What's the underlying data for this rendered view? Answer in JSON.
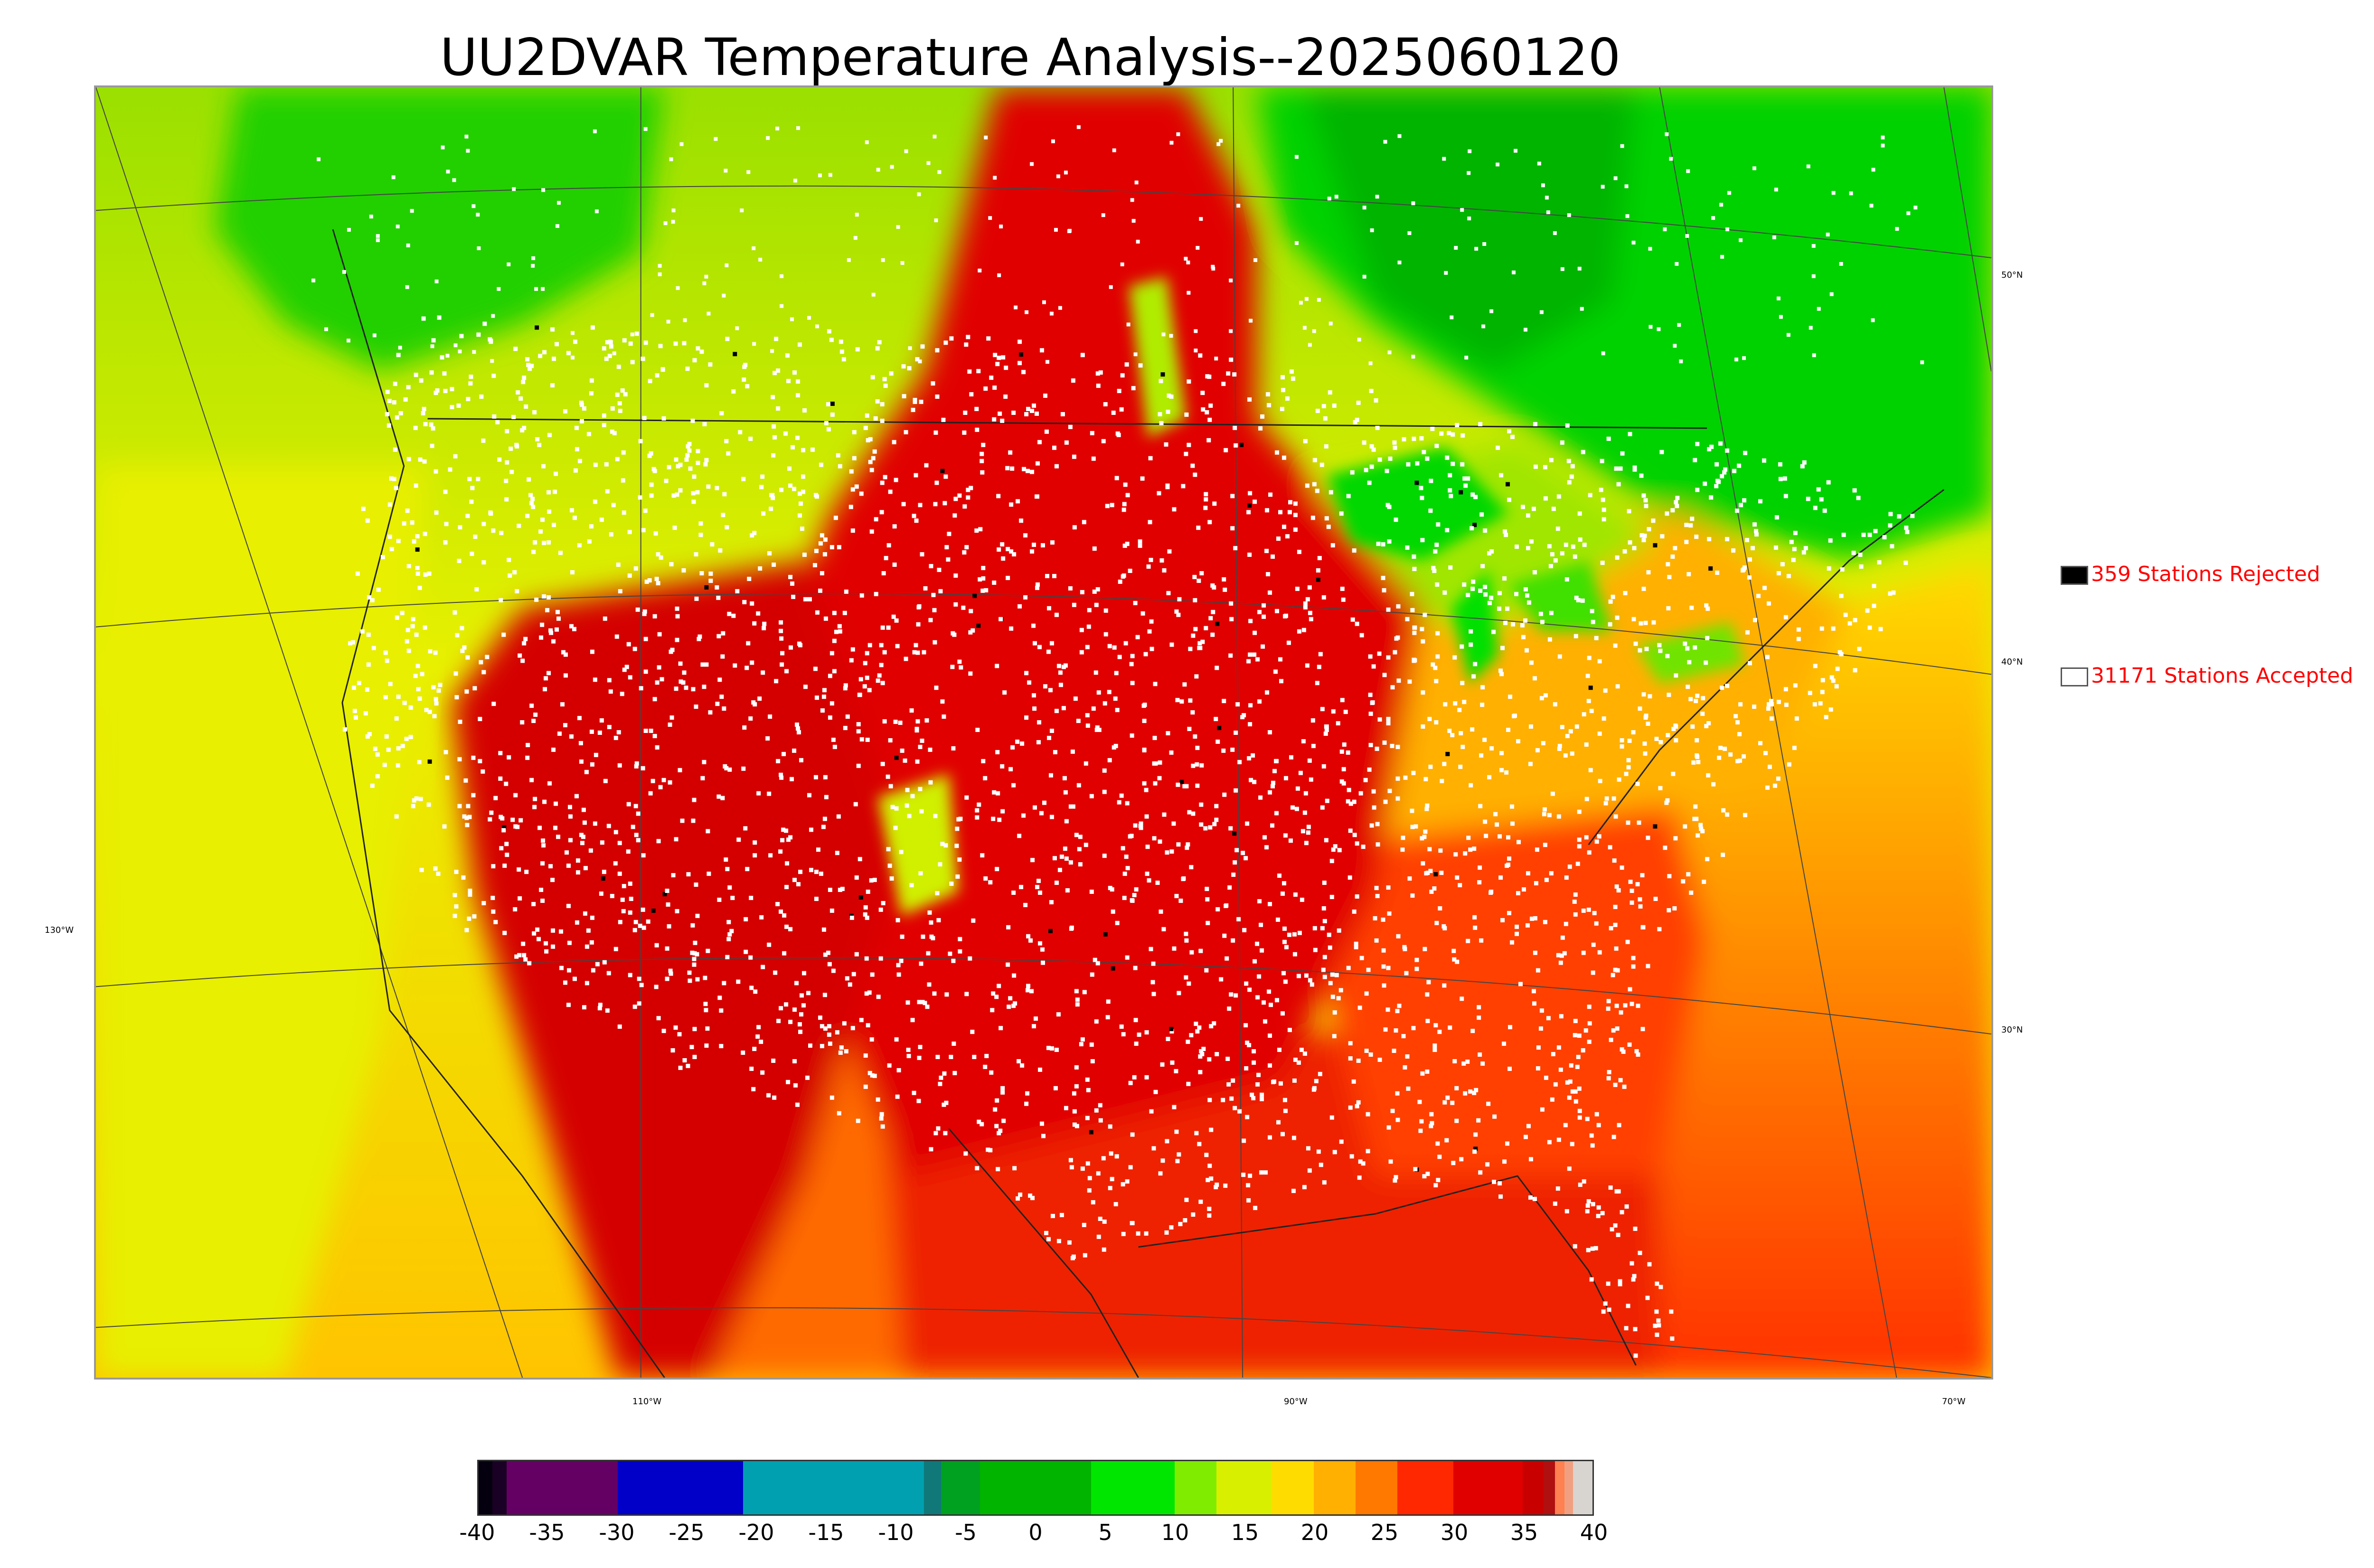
{
  "title": "UU2DVAR Temperature Analysis--2025060120",
  "map": {
    "longitude_labels": [
      "130°W",
      "110°W",
      "90°W",
      "70°W"
    ],
    "latitude_labels": [
      "50°N",
      "40°N",
      "30°N"
    ],
    "colors": {
      "cold": "#00c800",
      "cool": "#7de000",
      "mild": "#e8f000",
      "warm": "#ffc400",
      "hot": "#ff6a00",
      "veryhot": "#ee1c00",
      "extreme": "#c80000",
      "station_accepted": "#ffffff",
      "station_rejected": "#000000"
    }
  },
  "legend": {
    "rejected": {
      "label": "359 Stations Rejected",
      "count": 359,
      "swatch_color": "#000000"
    },
    "accepted": {
      "label": "31171 Stations Accepted",
      "count": 31171,
      "swatch_color": "#ffffff"
    }
  },
  "colorbar": {
    "ticks": [
      "-40",
      "-35",
      "-30",
      "-25",
      "-20",
      "-15",
      "-10",
      "-5",
      "0",
      "5",
      "10",
      "15",
      "20",
      "25",
      "30",
      "35",
      "40"
    ],
    "range": [
      -40,
      40
    ],
    "segments": [
      {
        "from": -40,
        "to": -39,
        "color": "#050010"
      },
      {
        "from": -39,
        "to": -38,
        "color": "#1a0025"
      },
      {
        "from": -38,
        "to": -30,
        "color": "#640064"
      },
      {
        "from": -30,
        "to": -21,
        "color": "#0000c8"
      },
      {
        "from": -21,
        "to": -8,
        "color": "#00a0b0"
      },
      {
        "from": -8,
        "to": -6.8,
        "color": "#107878"
      },
      {
        "from": -6.8,
        "to": -4,
        "color": "#00a020"
      },
      {
        "from": -4,
        "to": 4,
        "color": "#00b400"
      },
      {
        "from": 4,
        "to": 10,
        "color": "#00e600"
      },
      {
        "from": 10,
        "to": 13,
        "color": "#80ec00"
      },
      {
        "from": 13,
        "to": 17,
        "color": "#d8f000"
      },
      {
        "from": 17,
        "to": 20,
        "color": "#ffdc00"
      },
      {
        "from": 20,
        "to": 23,
        "color": "#ffb000"
      },
      {
        "from": 23,
        "to": 26,
        "color": "#ff7800"
      },
      {
        "from": 26,
        "to": 30,
        "color": "#ff2800"
      },
      {
        "from": 30,
        "to": 35,
        "color": "#e00000"
      },
      {
        "from": 35,
        "to": 36.5,
        "color": "#c80000"
      },
      {
        "from": 36.5,
        "to": 37.3,
        "color": "#b01010"
      },
      {
        "from": 37.3,
        "to": 38,
        "color": "#ff8050"
      },
      {
        "from": 38,
        "to": 38.6,
        "color": "#f0a080"
      },
      {
        "from": 38.6,
        "to": 40,
        "color": "#d8d4d0"
      }
    ]
  }
}
